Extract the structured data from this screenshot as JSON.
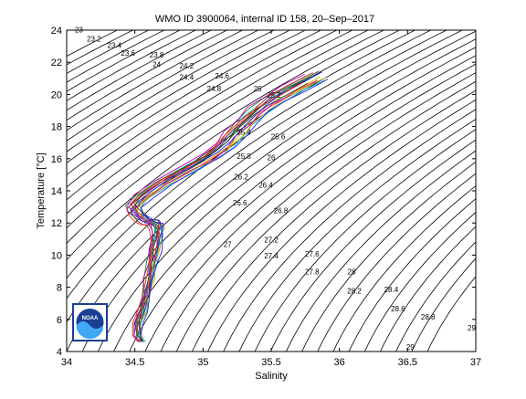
{
  "chart_data": {
    "type": "line",
    "title": "WMO ID 3900064, internal ID 158, 20–Sep–2017",
    "xlabel": "Salinity",
    "ylabel": "Temperature [°C]",
    "xlim": [
      34,
      37
    ],
    "ylim": [
      4,
      24
    ],
    "xticks": [
      34,
      34.5,
      35,
      35.5,
      36,
      36.5,
      37
    ],
    "xtick_labels": [
      "34",
      "34.5",
      "35",
      "35.5",
      "36",
      "36.5",
      "37"
    ],
    "yticks": [
      4,
      6,
      8,
      10,
      12,
      14,
      16,
      18,
      20,
      22,
      24
    ],
    "ytick_labels": [
      "4",
      "6",
      "8",
      "10",
      "12",
      "14",
      "16",
      "18",
      "20",
      "22",
      "24"
    ],
    "grid": false,
    "logo": {
      "name": "noaa-logo",
      "text": "NOAA",
      "colors": [
        "#1b3f93",
        "#3fa9f5",
        "#ffffff"
      ]
    },
    "density_contours": {
      "labels": [
        {
          "label": "23",
          "s": 34.09,
          "t": 23.85
        },
        {
          "label": "23.2",
          "s": 34.2,
          "t": 23.3
        },
        {
          "label": "23.4",
          "s": 34.35,
          "t": 22.9
        },
        {
          "label": "23.6",
          "s": 34.45,
          "t": 22.4
        },
        {
          "label": "23.8",
          "s": 34.66,
          "t": 22.3
        },
        {
          "label": "24",
          "s": 34.66,
          "t": 21.7
        },
        {
          "label": "24.2",
          "s": 34.88,
          "t": 21.6
        },
        {
          "label": "24.4",
          "s": 34.88,
          "t": 20.9
        },
        {
          "label": "24.6",
          "s": 35.14,
          "t": 21.0
        },
        {
          "label": "24.8",
          "s": 35.08,
          "t": 20.2
        },
        {
          "label": "25",
          "s": 35.4,
          "t": 20.2
        },
        {
          "label": "25.2",
          "s": 35.52,
          "t": 19.8
        },
        {
          "label": "25.4",
          "s": 35.3,
          "t": 17.5
        },
        {
          "label": "25.6",
          "s": 35.55,
          "t": 17.2
        },
        {
          "label": "25.8",
          "s": 35.3,
          "t": 16.0
        },
        {
          "label": "26",
          "s": 35.5,
          "t": 15.9
        },
        {
          "label": "26.2",
          "s": 35.28,
          "t": 14.7
        },
        {
          "label": "26.4",
          "s": 35.46,
          "t": 14.2
        },
        {
          "label": "26.6",
          "s": 35.27,
          "t": 13.1
        },
        {
          "label": "26.8",
          "s": 35.57,
          "t": 12.6
        },
        {
          "label": "27",
          "s": 35.18,
          "t": 10.5
        },
        {
          "label": "27.2",
          "s": 35.5,
          "t": 10.8
        },
        {
          "label": "27.4",
          "s": 35.5,
          "t": 9.8
        },
        {
          "label": "27.6",
          "s": 35.8,
          "t": 9.9
        },
        {
          "label": "27.8",
          "s": 35.8,
          "t": 8.8
        },
        {
          "label": "28",
          "s": 36.09,
          "t": 8.8
        },
        {
          "label": "28.2",
          "s": 36.11,
          "t": 7.6
        },
        {
          "label": "28.4",
          "s": 36.38,
          "t": 7.7
        },
        {
          "label": "28.6",
          "s": 36.43,
          "t": 6.5
        },
        {
          "label": "28.8",
          "s": 36.65,
          "t": 6.0
        },
        {
          "label": "29",
          "s": 36.97,
          "t": 5.3
        },
        {
          "label": "29",
          "s": 36.52,
          "t": 4.1
        }
      ]
    },
    "series_base": {
      "name": "profile",
      "salinity": [
        34.55,
        34.52,
        34.52,
        34.55,
        34.58,
        34.6,
        34.62,
        34.64,
        34.65,
        34.66,
        34.66,
        34.64,
        34.6,
        34.55,
        34.5,
        34.48,
        34.55,
        34.7,
        34.9,
        35.05,
        35.15,
        35.22,
        35.3,
        35.4,
        35.5,
        35.65,
        35.8
      ],
      "temperature": [
        4.6,
        5.0,
        5.8,
        6.5,
        7.5,
        8.5,
        9.5,
        10.3,
        10.9,
        11.3,
        11.7,
        12.0,
        12.0,
        12.2,
        12.6,
        13.0,
        13.6,
        14.5,
        15.4,
        16.1,
        16.8,
        17.5,
        18.2,
        19.0,
        19.6,
        20.3,
        21.0
      ]
    },
    "series": [
      {
        "color": "#1f1fff",
        "ds": -0.02,
        "dt": 0.0
      },
      {
        "color": "#0a8a0a",
        "ds": 0.01,
        "dt": 0.2
      },
      {
        "color": "#ff2020",
        "ds": 0.03,
        "dt": -0.1
      },
      {
        "color": "#00bfbf",
        "ds": -0.01,
        "dt": 0.3
      },
      {
        "color": "#bf00bf",
        "ds": 0.02,
        "dt": -0.2
      },
      {
        "color": "#b5b500",
        "ds": 0.04,
        "dt": 0.1
      },
      {
        "color": "#3a3a3a",
        "ds": -0.03,
        "dt": -0.3
      },
      {
        "color": "#1f1fff",
        "ds": 0.05,
        "dt": 0.4
      },
      {
        "color": "#0a8a0a",
        "ds": -0.04,
        "dt": 0.15
      },
      {
        "color": "#ff2020",
        "ds": 0.0,
        "dt": 0.35
      },
      {
        "color": "#00bfbf",
        "ds": 0.06,
        "dt": -0.15
      },
      {
        "color": "#bf00bf",
        "ds": -0.05,
        "dt": 0.25
      },
      {
        "color": "#b5b500",
        "ds": 0.07,
        "dt": 0.05
      },
      {
        "color": "#3a3a3a",
        "ds": 0.03,
        "dt": 0.45
      },
      {
        "color": "#1f1fff",
        "ds": 0.08,
        "dt": -0.05
      },
      {
        "color": "#ff2020",
        "ds": -0.06,
        "dt": -0.25
      }
    ]
  }
}
